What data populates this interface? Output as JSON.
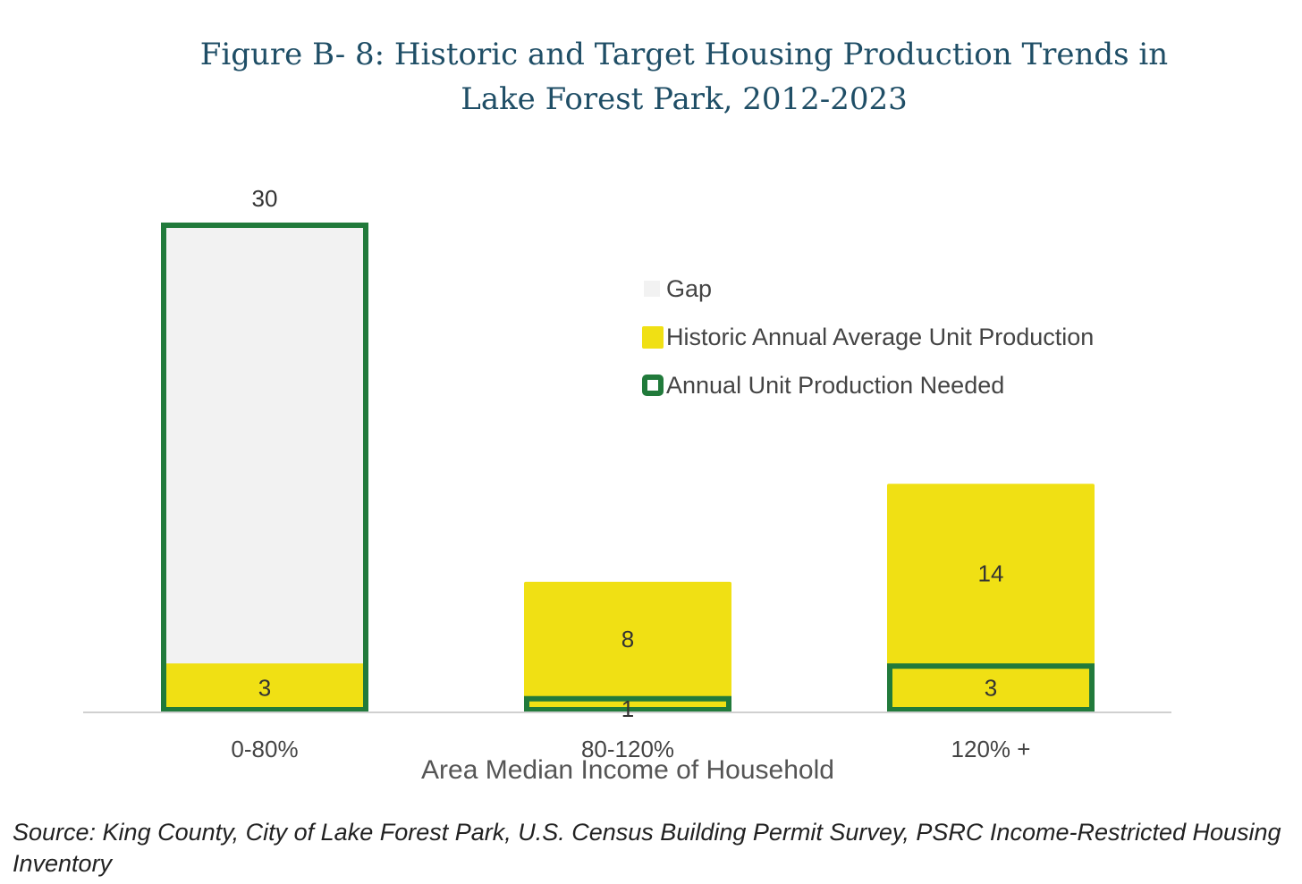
{
  "chart_data": {
    "type": "bar",
    "title": "Figure B- 8: Historic and Target Housing Production Trends in Lake Forest Park, 2012-2023",
    "xlabel": "Area Median Income of Household",
    "ylabel": "",
    "categories": [
      "0-80%",
      "80-120%",
      "120% +"
    ],
    "series": [
      {
        "name": "Gap",
        "values": [
          30,
          0,
          0
        ],
        "color": "#f2f2f2"
      },
      {
        "name": "Historic Annual Average Unit Production",
        "values": [
          3,
          8,
          14
        ],
        "color": "#f0e014"
      },
      {
        "name": "Annual Unit Production Needed",
        "values": [
          30,
          1,
          3
        ],
        "color": "#217a3b"
      }
    ],
    "data_labels": [
      "30",
      "3",
      "8",
      "1",
      "14",
      "3"
    ],
    "ylim": [
      0,
      30
    ],
    "grid": false,
    "legend": "upper-right"
  },
  "source": "Source: King County, City of Lake Forest Park, U.S. Census Building Permit Survey, PSRC Income-Restricted Housing Inventory"
}
